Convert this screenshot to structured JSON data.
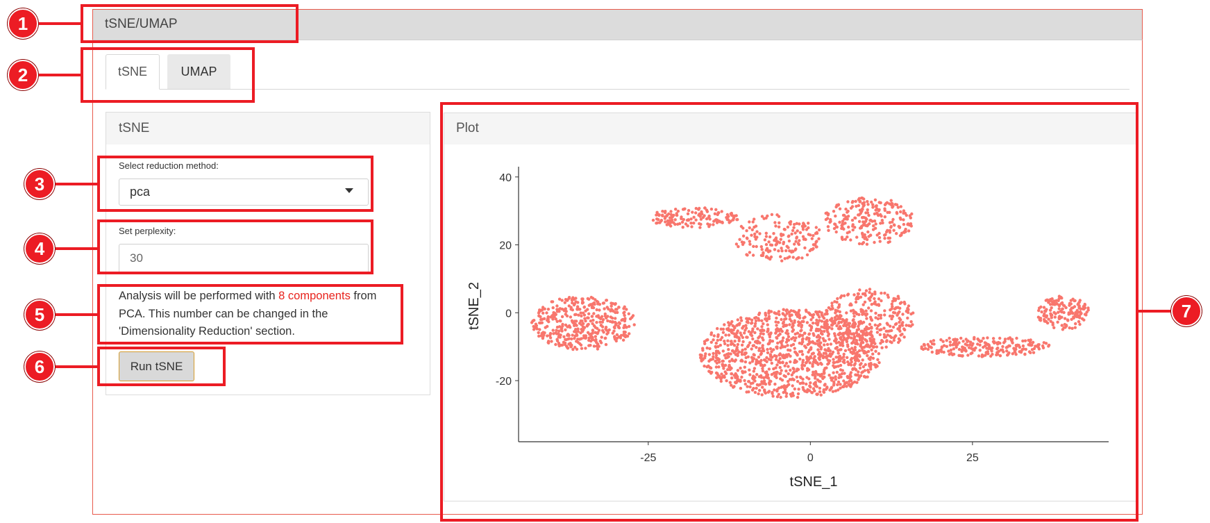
{
  "outer": {
    "title": "tSNE/UMAP"
  },
  "tabs": [
    {
      "label": "tSNE",
      "active": true
    },
    {
      "label": "UMAP",
      "active": false
    }
  ],
  "sidebar": {
    "title": "tSNE",
    "reduction": {
      "label": "Select reduction method:",
      "value": "pca"
    },
    "perplexity": {
      "label": "Set perplexity:",
      "placeholder": "30"
    },
    "help": {
      "prefix": "Analysis will be performed with ",
      "highlight": "8 components",
      "suffix": " from PCA. This number can be changed in the 'Dimensionality Reduction' section."
    },
    "run_label": "Run tSNE"
  },
  "plot_panel": {
    "title": "Plot"
  },
  "annotations": [
    "1",
    "2",
    "3",
    "4",
    "5",
    "6",
    "7"
  ],
  "colors": {
    "accent": "#ec1c24",
    "point": "#f8766d",
    "highlight": "#e8231d"
  },
  "chart_data": {
    "type": "scatter",
    "xlabel": "tSNE_1",
    "ylabel": "tSNE_2",
    "xlim": [
      -45,
      46
    ],
    "ylim": [
      -38,
      42
    ],
    "xticks": [
      -25,
      0,
      25
    ],
    "yticks": [
      -20,
      0,
      20,
      40
    ],
    "grid": false,
    "legend": "none",
    "point_color": "#f8766d",
    "clusters": [
      {
        "cx": -35,
        "cy": -3,
        "rx": 8,
        "ry": 8,
        "n": 420
      },
      {
        "cx": -18,
        "cy": 28,
        "rx": 7,
        "ry": 3,
        "n": 140
      },
      {
        "cx": -5,
        "cy": 22,
        "rx": 7,
        "ry": 7,
        "n": 170
      },
      {
        "cx": 9,
        "cy": 27,
        "rx": 7,
        "ry": 7,
        "n": 230
      },
      {
        "cx": -3,
        "cy": -12,
        "rx": 14,
        "ry": 13,
        "n": 1200
      },
      {
        "cx": 9,
        "cy": -2,
        "rx": 7,
        "ry": 9,
        "n": 300
      },
      {
        "cx": 27,
        "cy": -10,
        "rx": 10,
        "ry": 3,
        "n": 220
      },
      {
        "cx": 39,
        "cy": 0,
        "rx": 4,
        "ry": 5,
        "n": 160
      }
    ]
  }
}
